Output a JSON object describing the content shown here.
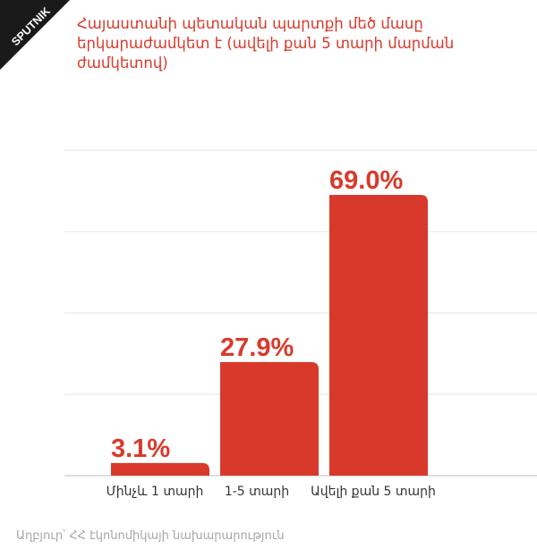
{
  "brand": {
    "logo_text": "SPUTNIK"
  },
  "title": "Հայաստանի պետական պարտքի մեծ մասը երկարաժամկետ է (ավելի քան 5 տարի մարման ժամկետով)",
  "source": "Աղբյուր՝ ՀՀ էկոնոմիկայի նախարարություն",
  "colors": {
    "accent": "#d9392b",
    "grid": "#e3e3e3",
    "axis": "#bdbdbd",
    "label": "#333333",
    "source": "#a6a6a6"
  },
  "chart_data": {
    "type": "bar",
    "title": "Հայաստանի պետական պարտքի մեծ մասը երկարաժամկետ է (ավելի քան 5 տարի մարման ժամկետով)",
    "categories": [
      "Մինչև 1 տարի",
      "1-5 տարի",
      "Ավելի քան 5 տարի"
    ],
    "values": [
      3.1,
      27.9,
      69.0
    ],
    "data_labels": [
      "3.1%",
      "27.9%",
      "69.0%"
    ],
    "xlabel": "",
    "ylabel": "",
    "ylim": [
      0,
      80
    ],
    "grid": true,
    "legend": "none"
  }
}
